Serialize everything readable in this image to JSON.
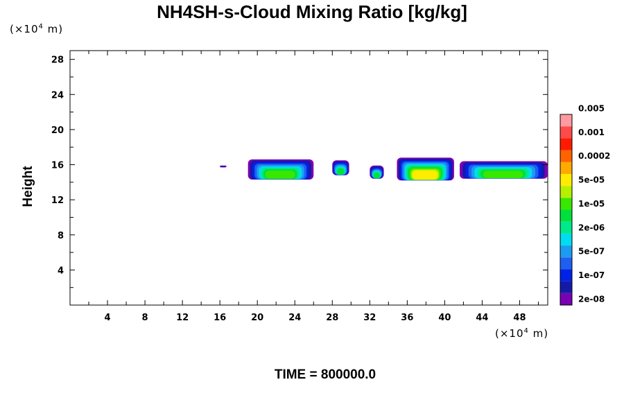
{
  "chart_data": {
    "type": "heatmap",
    "title": "NH4SH-s-Cloud Mixing Ratio [kg/kg]",
    "ylabel": "Height",
    "x_unit": "10^4 m",
    "y_unit": "10^4 m",
    "xlim": [
      0,
      51
    ],
    "ylim": [
      0,
      29
    ],
    "x_ticks": [
      4,
      8,
      12,
      16,
      20,
      24,
      28,
      32,
      36,
      40,
      44,
      48
    ],
    "y_ticks": [
      4,
      8,
      12,
      16,
      20,
      24,
      28
    ],
    "time_label": "TIME = 800000.0",
    "colorbar": {
      "colors": [
        "#7a00b3",
        "#141aa6",
        "#0022e6",
        "#1f5ff0",
        "#1c9cf0",
        "#00dcf0",
        "#00e88c",
        "#00e03c",
        "#38e800",
        "#b6f000",
        "#ffec00",
        "#ffaa00",
        "#ff6200",
        "#ff1a00",
        "#ff4a4a",
        "#ff9aa0"
      ],
      "labels": [
        "2e-08",
        "1e-07",
        "5e-07",
        "2e-06",
        "1e-05",
        "5e-05",
        "0.0002",
        "0.001",
        "0.005"
      ]
    },
    "cloud_blobs": [
      {
        "x_range": [
          16.0,
          16.7
        ],
        "y_range": [
          15.7,
          15.9
        ],
        "max_level": 1
      },
      {
        "x_range": [
          19.0,
          26.0
        ],
        "y_range": [
          14.3,
          16.6
        ],
        "max_level": 8
      },
      {
        "x_range": [
          28.0,
          29.8
        ],
        "y_range": [
          14.8,
          16.5
        ],
        "max_level": 7
      },
      {
        "x_range": [
          32.0,
          33.5
        ],
        "y_range": [
          14.4,
          15.9
        ],
        "max_level": 7
      },
      {
        "x_range": [
          34.9,
          41.0
        ],
        "y_range": [
          14.2,
          16.8
        ],
        "max_level": 10
      },
      {
        "x_range": [
          41.6,
          51.0
        ],
        "y_range": [
          14.4,
          16.4
        ],
        "max_level": 8
      }
    ]
  }
}
